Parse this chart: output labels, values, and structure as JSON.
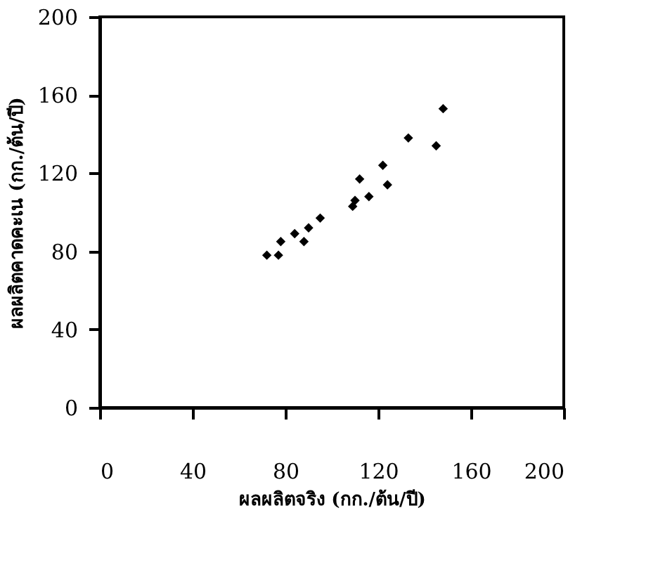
{
  "chart_data": {
    "type": "scatter",
    "xlabel": "ผลผลิตจริง (กก./ต้น/ปี)",
    "ylabel": "ผลผลิตคาดคะเน (กก./ต้น/ปี)",
    "x": [
      72,
      77,
      78,
      84,
      88,
      90,
      95,
      109,
      110,
      116,
      112,
      122,
      124,
      133,
      145,
      148
    ],
    "values": [
      78,
      78,
      85,
      89,
      85,
      92,
      97,
      103,
      106,
      108,
      117,
      124,
      114,
      138,
      134,
      153
    ],
    "color": "#000000",
    "marker": "diamond",
    "xlim": [
      0,
      200
    ],
    "ylim": [
      0,
      200
    ],
    "xticks": [
      0,
      40,
      80,
      120,
      160,
      200
    ],
    "yticks": [
      0,
      40,
      80,
      120,
      160,
      200
    ],
    "grid": false
  }
}
